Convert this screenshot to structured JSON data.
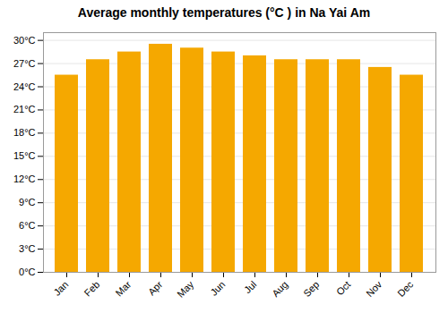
{
  "chart_data": {
    "type": "bar",
    "title": "Average monthly temperatures (°C ) in Na Yai Am",
    "categories": [
      "Jan",
      "Feb",
      "Mar",
      "Apr",
      "May",
      "Jun",
      "Jul",
      "Aug",
      "Sep",
      "Oct",
      "Nov",
      "Dec"
    ],
    "values": [
      25.5,
      27.5,
      28.5,
      29.5,
      29.0,
      28.5,
      28.0,
      27.5,
      27.5,
      27.5,
      26.5,
      25.5
    ],
    "color": "#F5A800",
    "ylim": [
      0,
      31
    ],
    "yticks": [
      {
        "value": 0,
        "label": "0°C"
      },
      {
        "value": 3,
        "label": "3°C"
      },
      {
        "value": 6,
        "label": "6°C"
      },
      {
        "value": 9,
        "label": "9°C"
      },
      {
        "value": 12,
        "label": "12°C"
      },
      {
        "value": 15,
        "label": "15°C"
      },
      {
        "value": 18,
        "label": "18°C"
      },
      {
        "value": 21,
        "label": "21°C"
      },
      {
        "value": 24,
        "label": "24°C"
      },
      {
        "value": 27,
        "label": "27°C"
      },
      {
        "value": 30,
        "label": "30°C"
      }
    ],
    "grid": true
  }
}
